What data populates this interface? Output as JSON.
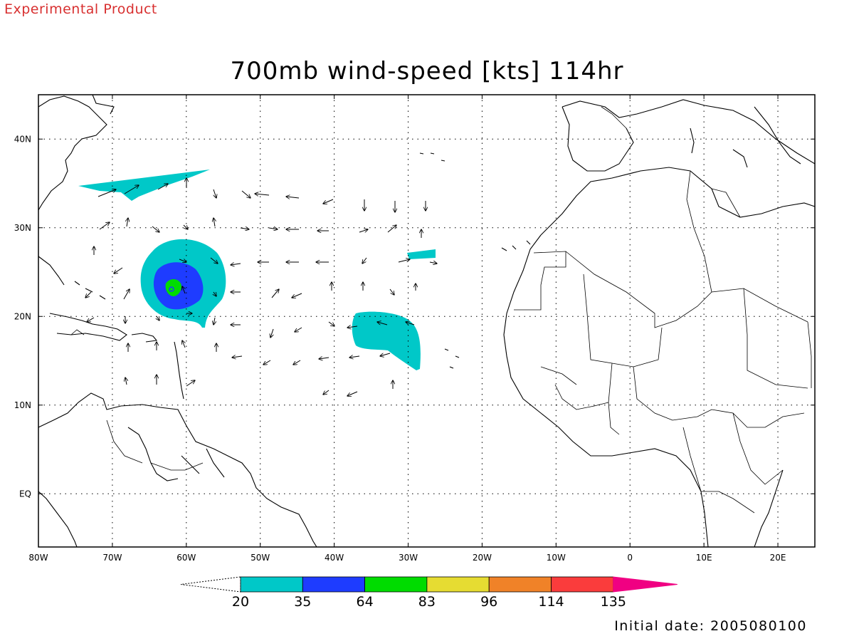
{
  "banner": "Experimental Product",
  "title": "700mb wind-speed [kts] 114hr",
  "initial_date": "Initial date: 2005080100",
  "map": {
    "lon_range": [
      -80,
      25
    ],
    "lat_range": [
      -6,
      45
    ],
    "lon_tick_labels": [
      "80W",
      "70W",
      "60W",
      "50W",
      "40W",
      "30W",
      "20W",
      "10W",
      "0",
      "10E",
      "20E"
    ],
    "lon_tick_values": [
      -80,
      -70,
      -60,
      -50,
      -40,
      -30,
      -20,
      -10,
      0,
      10,
      20
    ],
    "lat_tick_labels": [
      "EQ",
      "10N",
      "20N",
      "30N",
      "40N"
    ],
    "lat_tick_values": [
      0,
      10,
      20,
      30,
      40
    ],
    "grid": "dotted"
  },
  "colorbar": {
    "labels": [
      "20",
      "35",
      "64",
      "83",
      "96",
      "114",
      "135"
    ],
    "colors": [
      "#00c8c8",
      "#1e3cff",
      "#00dc00",
      "#e6dc32",
      "#f08228",
      "#fa3c3c",
      "#f00082"
    ],
    "below_color": "#ffffff",
    "above_color": "#f00082"
  },
  "wind_shading": [
    {
      "level": "20-35",
      "color": "#00c8c8"
    },
    {
      "level": "35-64",
      "color": "#1e3cff"
    },
    {
      "level": "64-83",
      "color": "#00dc00"
    }
  ]
}
